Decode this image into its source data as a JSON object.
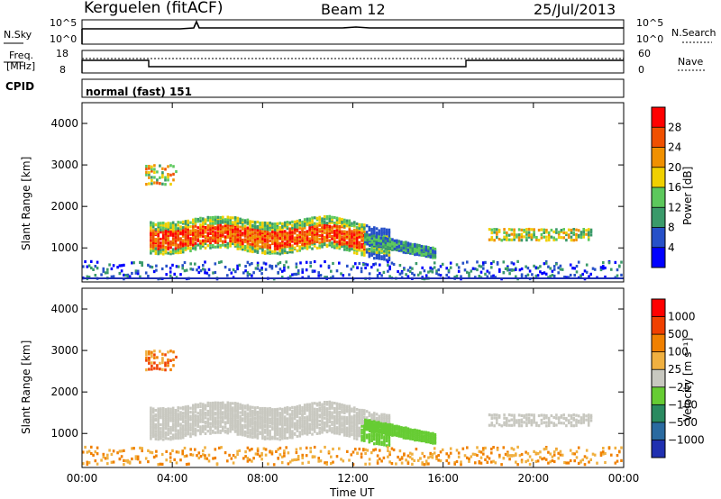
{
  "header": {
    "station": "Kerguelen (fitACF)",
    "beam": "Beam 12",
    "date": "25/Jul/2013"
  },
  "top_panels": {
    "nsky_label": "N.Sky",
    "nsky_ticks": [
      "10^5",
      "10^0"
    ],
    "nsearch_label": "N.Search",
    "nsearch_ticks": [
      "10^5",
      "10^0"
    ],
    "freq_label": "Freq.",
    "freq_unit": "[MHz]",
    "freq_ticks": [
      "18",
      "8"
    ],
    "nave_label": "Nave",
    "nave_ticks": [
      "60",
      "0"
    ],
    "cpid_label": "CPID",
    "cpid_value": "normal (fast) 151"
  },
  "chart_data": [
    {
      "type": "heatmap",
      "name": "power",
      "ylabel": "Slant Range [km]",
      "ylim": [
        180,
        4500
      ],
      "yticks": [
        "1000",
        "2000",
        "3000",
        "4000"
      ],
      "colorbar_label": "Power [dB]",
      "colorbar_ticks": [
        "28",
        "24",
        "20",
        "16",
        "12",
        "8",
        "4"
      ],
      "colors": [
        "#0000ff",
        "#2650c8",
        "#3a9a6a",
        "#5cc85c",
        "#f0d000",
        "#f09000",
        "#f05000",
        "#ff0000"
      ]
    },
    {
      "type": "heatmap",
      "name": "velocity",
      "ylabel": "Slant Range [km]",
      "xlabel": "Time UT",
      "ylim": [
        180,
        4500
      ],
      "yticks": [
        "1000",
        "2000",
        "3000",
        "4000"
      ],
      "xlim": [
        "00:00",
        "24:00"
      ],
      "xticks": [
        "00:00",
        "04:00",
        "08:00",
        "12:00",
        "16:00",
        "20:00",
        "00:00"
      ],
      "colorbar_label": "Velocity [m s⁻¹]",
      "colorbar_ticks": [
        "1000",
        "500",
        "100",
        "25",
        "−25",
        "−100",
        "−500",
        "−1000"
      ],
      "colors": [
        "#2030b0",
        "#2a6aa0",
        "#2a8a60",
        "#66cc33",
        "#c8c8c0",
        "#f0b040",
        "#f08000",
        "#f04000",
        "#ff0000"
      ]
    }
  ]
}
